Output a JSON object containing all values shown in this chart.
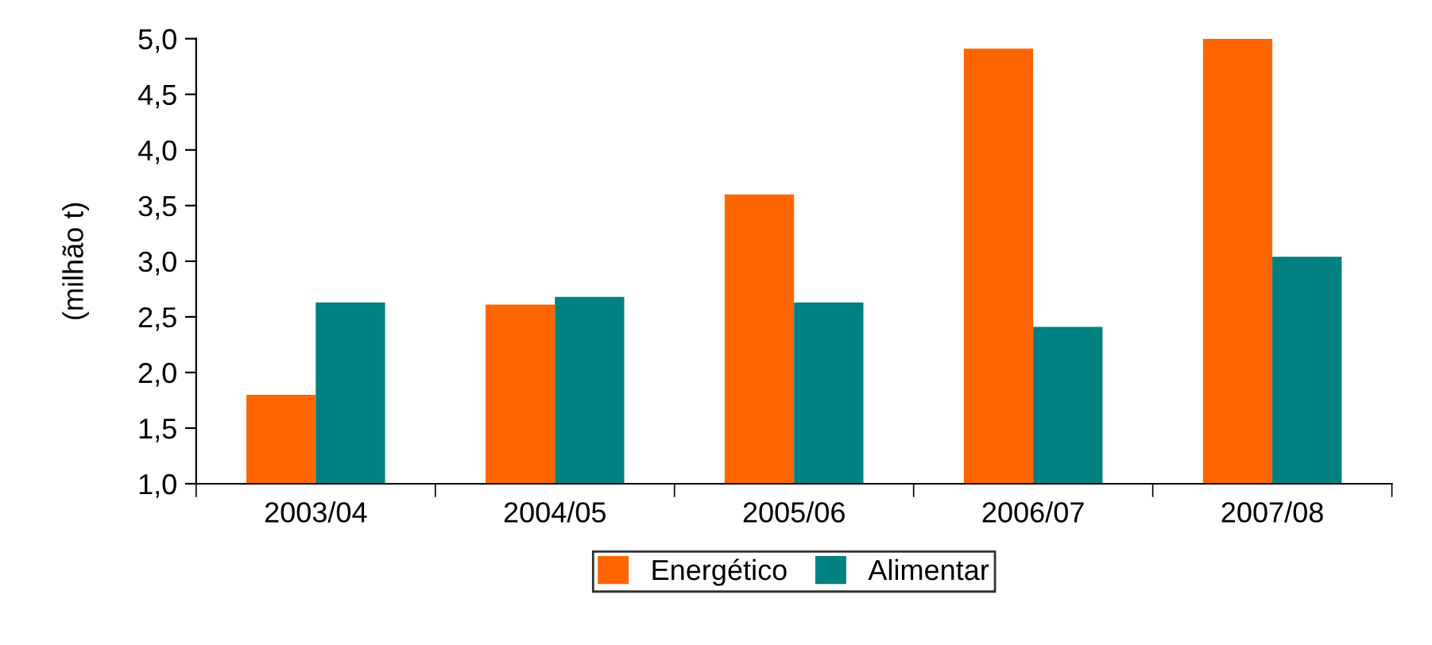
{
  "chart_data": {
    "type": "bar",
    "ylabel": "(milhão t)",
    "categories": [
      "2003/04",
      "2004/05",
      "2005/06",
      "2006/07",
      "2007/08"
    ],
    "series": [
      {
        "name": "Energético",
        "color": "#ff6600",
        "values": [
          1.8,
          2.61,
          3.6,
          4.91,
          5.0
        ]
      },
      {
        "name": "Alimentar",
        "color": "#008080",
        "values": [
          2.63,
          2.68,
          2.63,
          2.41,
          3.04
        ]
      }
    ],
    "ylim": [
      1.0,
      5.0
    ],
    "yticks": [
      {
        "value": 1.0,
        "label": "1,0"
      },
      {
        "value": 1.5,
        "label": "1,5"
      },
      {
        "value": 2.0,
        "label": "2,0"
      },
      {
        "value": 2.5,
        "label": "2,5"
      },
      {
        "value": 3.0,
        "label": "3,0"
      },
      {
        "value": 3.5,
        "label": "3,5"
      },
      {
        "value": 4.0,
        "label": "4,0"
      },
      {
        "value": 4.5,
        "label": "4,5"
      },
      {
        "value": 5.0,
        "label": "5,0"
      }
    ],
    "grid": false,
    "legend": "bottom"
  }
}
